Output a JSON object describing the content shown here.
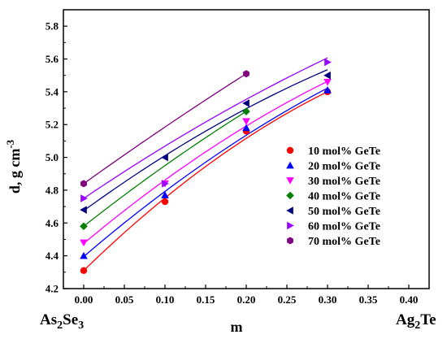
{
  "chart_data": {
    "type": "scatter",
    "xlabel": "m",
    "ylabel": "d, g cm-3",
    "ylabel_parts": {
      "base": "d, g cm",
      "sup": "-3"
    },
    "xlim": [
      -0.025,
      0.425
    ],
    "ylim": [
      4.2,
      5.9
    ],
    "x_ticks": [
      "0.00",
      "0.05",
      "0.10",
      "0.15",
      "0.20",
      "0.25",
      "0.30",
      "0.35",
      "0.40"
    ],
    "y_ticks": [
      "4.2",
      "4.4",
      "4.6",
      "4.8",
      "5.0",
      "5.2",
      "5.4",
      "5.6",
      "5.8"
    ],
    "x_end_labels": {
      "left": {
        "base": "As",
        "sub1": "2",
        "mid": "Se",
        "sub2": "3"
      },
      "right": {
        "base": "Ag",
        "sub1": "2",
        "mid": "Te",
        "sub2": ""
      }
    },
    "legend_position": "right",
    "grid": false,
    "series": [
      {
        "name": "10 mol% GeTe",
        "color": "#ff0000",
        "marker": "circle",
        "x": [
          0.0,
          0.1,
          0.2,
          0.3
        ],
        "y": [
          4.31,
          4.73,
          5.16,
          5.4
        ]
      },
      {
        "name": "20 mol% GeTe",
        "color": "#0000ff",
        "marker": "triangle-up",
        "x": [
          0.0,
          0.1,
          0.2,
          0.3
        ],
        "y": [
          4.4,
          4.77,
          5.18,
          5.41
        ]
      },
      {
        "name": "30 mol% GeTe",
        "color": "#ff00ff",
        "marker": "triangle-down",
        "x": [
          0.0,
          0.1,
          0.2,
          0.3
        ],
        "y": [
          4.48,
          4.84,
          5.22,
          5.46
        ]
      },
      {
        "name": "40 mol% GeTe",
        "color": "#008000",
        "marker": "diamond",
        "x": [
          0.0,
          0.2
        ],
        "y": [
          4.58,
          5.28
        ]
      },
      {
        "name": "50 mol% GeTe",
        "color": "#000080",
        "marker": "triangle-left",
        "x": [
          0.0,
          0.1,
          0.2,
          0.3
        ],
        "y": [
          4.68,
          5.0,
          5.33,
          5.5
        ]
      },
      {
        "name": "60 mol% GeTe",
        "color": "#9900ff",
        "marker": "triangle-right",
        "x": [
          0.0,
          0.1,
          0.3
        ],
        "y": [
          4.75,
          4.84,
          5.58
        ]
      },
      {
        "name": "70 mol% GeTe",
        "color": "#800080",
        "marker": "hexagon",
        "x": [
          0.0,
          0.2
        ],
        "y": [
          4.84,
          5.51
        ]
      }
    ],
    "fit_curves": [
      {
        "series": "10 mol% GeTe",
        "x": [
          0.0,
          0.3
        ],
        "coeffs": [
          4.31,
          4.82,
          -3.95
        ]
      },
      {
        "series": "20 mol% GeTe",
        "x": [
          0.0,
          0.3
        ],
        "coeffs": [
          4.395,
          4.25,
          -2.75
        ]
      },
      {
        "series": "30 mol% GeTe",
        "x": [
          0.0,
          0.3
        ],
        "coeffs": [
          4.475,
          4.15,
          -2.85
        ]
      },
      {
        "series": "40 mol% GeTe",
        "x": [
          0.0,
          0.2
        ],
        "coeffs": [
          4.58,
          3.9,
          -2.0
        ]
      },
      {
        "series": "50 mol% GeTe",
        "x": [
          0.0,
          0.3
        ],
        "coeffs": [
          4.675,
          3.6,
          -2.45
        ]
      },
      {
        "series": "60 mol% GeTe",
        "x": [
          0.0,
          0.3
        ],
        "coeffs": [
          4.75,
          3.35,
          -1.65
        ]
      },
      {
        "series": "70 mol% GeTe",
        "x": [
          0.0,
          0.2
        ],
        "coeffs": [
          4.84,
          3.55,
          -1.0
        ]
      }
    ]
  }
}
